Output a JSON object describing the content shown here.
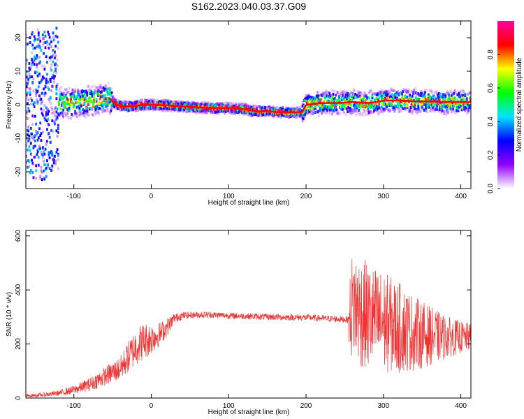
{
  "title": "S162.2023.040.03.37.G09",
  "chart_data": [
    {
      "type": "heatmap",
      "xlabel": "Height of straight line (km)",
      "ylabel": "Frequency (Hz)",
      "xlim": [
        -162,
        413
      ],
      "ylim": [
        -25,
        25
      ],
      "x_ticks": [
        -100,
        0,
        100,
        200,
        300,
        400
      ],
      "y_ticks": [
        -20,
        -10,
        0,
        10,
        20
      ],
      "x_tick_labels": [
        "-100",
        "0",
        "100",
        "200",
        "300",
        "400"
      ],
      "y_tick_labels": [
        "-20",
        "-10",
        "0",
        "10",
        "20"
      ],
      "ridge": {
        "x": [
          -140,
          -120,
          -100,
          -80,
          -60,
          -55,
          -45,
          -35,
          -25,
          -10,
          0,
          20,
          40,
          60,
          80,
          100,
          120,
          130,
          140,
          150,
          160,
          180,
          195,
          200,
          220,
          240,
          260,
          280,
          290,
          300,
          320,
          340,
          360,
          380,
          400,
          413
        ],
        "freq": [
          0,
          0.5,
          0.5,
          1,
          1.5,
          2,
          0,
          -0.5,
          -0.5,
          0,
          0,
          -0.2,
          -0.5,
          -0.8,
          -1,
          -1,
          -1.3,
          -1.8,
          -2,
          -1.8,
          -2.2,
          -2.3,
          -2.2,
          0,
          0.5,
          0.5,
          0.8,
          0.5,
          0.8,
          1.2,
          1.3,
          1,
          1,
          0.8,
          0.8,
          0.8
        ]
      },
      "colorbar": {
        "label": "Normalized spectral amplitude",
        "range": [
          0,
          1
        ],
        "ticks": [
          0.0,
          0.2,
          0.4,
          0.6,
          0.8
        ],
        "tick_labels": [
          "0.0",
          "0.2",
          "0.4",
          "0.6",
          "0.8"
        ],
        "colors": [
          "#ffffff",
          "#9000ff",
          "#0000ff",
          "#00e5ff",
          "#00ff00",
          "#ffff00",
          "#ff0000",
          "#ff00a0"
        ]
      }
    },
    {
      "type": "line",
      "xlabel": "Height of straight line (km)",
      "ylabel": "SNR (10 * v/v)",
      "xlim": [
        -162,
        413
      ],
      "ylim": [
        0,
        620
      ],
      "x_ticks": [
        -100,
        0,
        100,
        200,
        300,
        400
      ],
      "y_ticks": [
        0,
        200,
        400,
        600
      ],
      "x_tick_labels": [
        "-100",
        "0",
        "100",
        "200",
        "300",
        "400"
      ],
      "y_tick_labels": [
        "0",
        "200",
        "400",
        "600"
      ],
      "color": "#ee3333",
      "envelope": {
        "x": [
          -162,
          -140,
          -120,
          -100,
          -80,
          -60,
          -40,
          -30,
          -20,
          -10,
          0,
          10,
          20,
          30,
          40,
          60,
          80,
          100,
          150,
          200,
          255,
          256,
          260,
          270,
          280,
          300,
          320,
          340,
          360,
          380,
          400,
          413
        ],
        "mean": [
          8,
          12,
          18,
          30,
          50,
          80,
          110,
          150,
          190,
          210,
          220,
          235,
          260,
          295,
          305,
          308,
          308,
          305,
          300,
          298,
          290,
          280,
          350,
          320,
          300,
          280,
          260,
          240,
          230,
          225,
          225,
          225
        ],
        "spread": [
          6,
          8,
          10,
          16,
          25,
          35,
          45,
          60,
          70,
          70,
          60,
          45,
          35,
          20,
          14,
          12,
          12,
          12,
          12,
          12,
          12,
          150,
          200,
          210,
          200,
          190,
          170,
          140,
          110,
          80,
          60,
          50
        ]
      }
    }
  ]
}
